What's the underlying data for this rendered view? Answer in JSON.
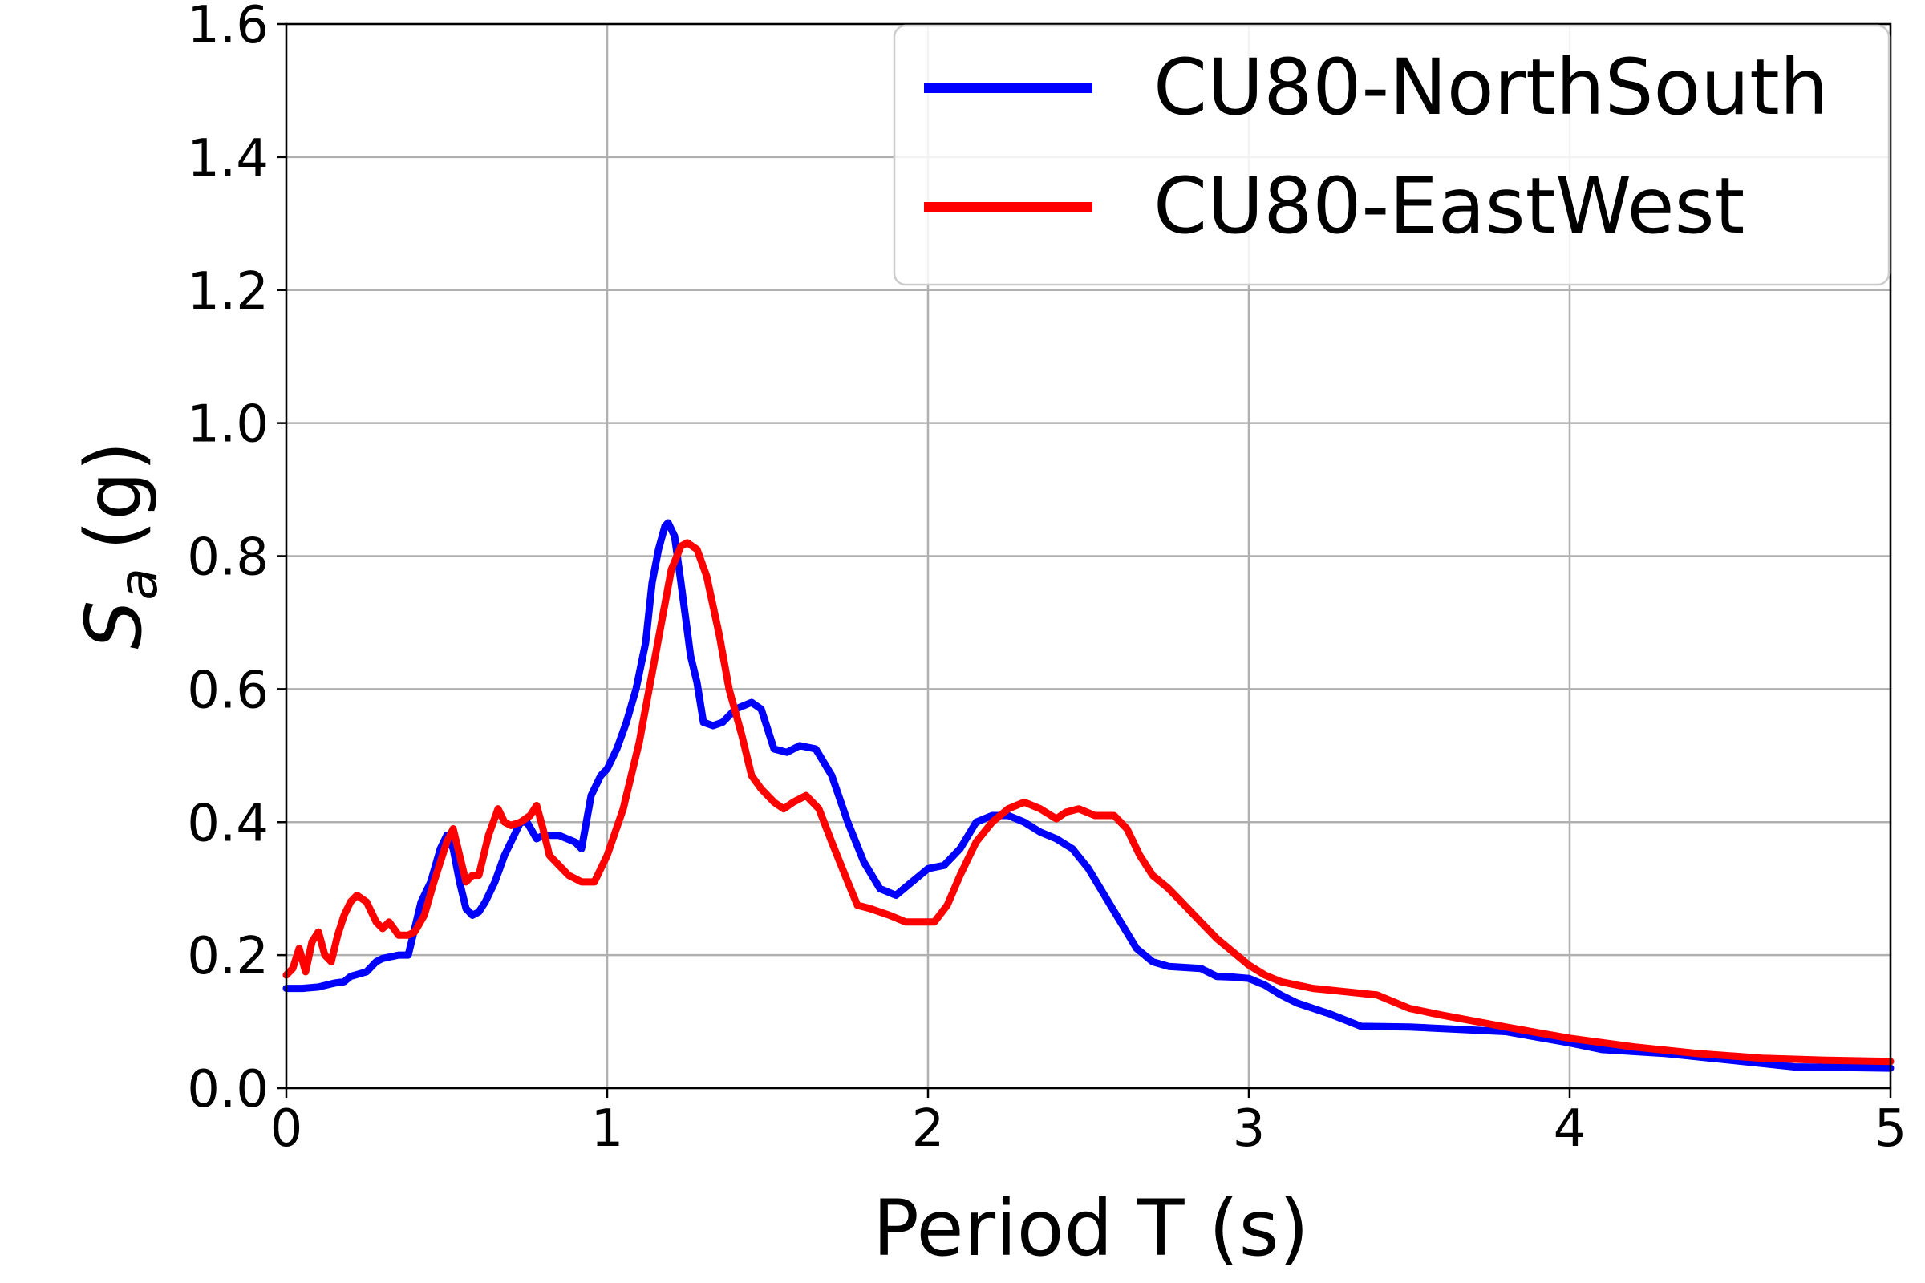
{
  "chart_data": {
    "type": "line",
    "xlabel": "Period T (s)",
    "ylabel_main": "S",
    "ylabel_sub": "a",
    "ylabel_unit": "(g)",
    "xlim": [
      0,
      5
    ],
    "ylim": [
      0,
      1.6
    ],
    "xticks": [
      "0",
      "1",
      "2",
      "3",
      "4",
      "5"
    ],
    "yticks": [
      "0.0",
      "0.2",
      "0.4",
      "0.6",
      "0.8",
      "1.0",
      "1.2",
      "1.4",
      "1.6"
    ],
    "grid": true,
    "legend_position": "top-right",
    "series": [
      {
        "name": "CU80-NorthSouth",
        "color": "#0000ff",
        "points": [
          [
            0.0,
            0.15
          ],
          [
            0.05,
            0.15
          ],
          [
            0.1,
            0.152
          ],
          [
            0.15,
            0.158
          ],
          [
            0.18,
            0.16
          ],
          [
            0.2,
            0.168
          ],
          [
            0.25,
            0.175
          ],
          [
            0.28,
            0.19
          ],
          [
            0.3,
            0.195
          ],
          [
            0.35,
            0.2
          ],
          [
            0.38,
            0.2
          ],
          [
            0.4,
            0.24
          ],
          [
            0.42,
            0.28
          ],
          [
            0.45,
            0.31
          ],
          [
            0.48,
            0.36
          ],
          [
            0.5,
            0.38
          ],
          [
            0.52,
            0.36
          ],
          [
            0.54,
            0.31
          ],
          [
            0.56,
            0.27
          ],
          [
            0.58,
            0.26
          ],
          [
            0.6,
            0.265
          ],
          [
            0.62,
            0.28
          ],
          [
            0.65,
            0.31
          ],
          [
            0.68,
            0.35
          ],
          [
            0.7,
            0.37
          ],
          [
            0.73,
            0.4
          ],
          [
            0.75,
            0.4
          ],
          [
            0.78,
            0.375
          ],
          [
            0.8,
            0.38
          ],
          [
            0.85,
            0.38
          ],
          [
            0.9,
            0.37
          ],
          [
            0.92,
            0.36
          ],
          [
            0.95,
            0.44
          ],
          [
            0.98,
            0.47
          ],
          [
            1.0,
            0.48
          ],
          [
            1.03,
            0.51
          ],
          [
            1.06,
            0.55
          ],
          [
            1.09,
            0.6
          ],
          [
            1.12,
            0.67
          ],
          [
            1.14,
            0.76
          ],
          [
            1.16,
            0.81
          ],
          [
            1.18,
            0.845
          ],
          [
            1.19,
            0.85
          ],
          [
            1.21,
            0.83
          ],
          [
            1.23,
            0.76
          ],
          [
            1.26,
            0.65
          ],
          [
            1.28,
            0.61
          ],
          [
            1.3,
            0.55
          ],
          [
            1.33,
            0.545
          ],
          [
            1.36,
            0.55
          ],
          [
            1.4,
            0.57
          ],
          [
            1.45,
            0.58
          ],
          [
            1.48,
            0.57
          ],
          [
            1.52,
            0.51
          ],
          [
            1.56,
            0.505
          ],
          [
            1.6,
            0.515
          ],
          [
            1.65,
            0.51
          ],
          [
            1.7,
            0.47
          ],
          [
            1.75,
            0.4
          ],
          [
            1.8,
            0.34
          ],
          [
            1.85,
            0.3
          ],
          [
            1.9,
            0.29
          ],
          [
            1.95,
            0.31
          ],
          [
            2.0,
            0.33
          ],
          [
            2.05,
            0.335
          ],
          [
            2.1,
            0.36
          ],
          [
            2.15,
            0.4
          ],
          [
            2.2,
            0.41
          ],
          [
            2.25,
            0.41
          ],
          [
            2.3,
            0.4
          ],
          [
            2.35,
            0.385
          ],
          [
            2.4,
            0.375
          ],
          [
            2.45,
            0.36
          ],
          [
            2.5,
            0.33
          ],
          [
            2.55,
            0.29
          ],
          [
            2.6,
            0.25
          ],
          [
            2.65,
            0.21
          ],
          [
            2.7,
            0.19
          ],
          [
            2.75,
            0.183
          ],
          [
            2.85,
            0.18
          ],
          [
            2.9,
            0.168
          ],
          [
            2.95,
            0.167
          ],
          [
            3.0,
            0.165
          ],
          [
            3.05,
            0.155
          ],
          [
            3.1,
            0.14
          ],
          [
            3.15,
            0.128
          ],
          [
            3.2,
            0.12
          ],
          [
            3.25,
            0.112
          ],
          [
            3.35,
            0.093
          ],
          [
            3.5,
            0.092
          ],
          [
            3.8,
            0.085
          ],
          [
            4.0,
            0.068
          ],
          [
            4.1,
            0.058
          ],
          [
            4.3,
            0.052
          ],
          [
            4.5,
            0.042
          ],
          [
            4.7,
            0.032
          ],
          [
            5.0,
            0.03
          ]
        ]
      },
      {
        "name": "CU80-EastWest",
        "color": "#ff0000",
        "points": [
          [
            0.0,
            0.17
          ],
          [
            0.02,
            0.18
          ],
          [
            0.04,
            0.21
          ],
          [
            0.06,
            0.175
          ],
          [
            0.08,
            0.22
          ],
          [
            0.1,
            0.235
          ],
          [
            0.12,
            0.2
          ],
          [
            0.14,
            0.19
          ],
          [
            0.16,
            0.23
          ],
          [
            0.18,
            0.26
          ],
          [
            0.2,
            0.28
          ],
          [
            0.22,
            0.29
          ],
          [
            0.25,
            0.28
          ],
          [
            0.28,
            0.25
          ],
          [
            0.3,
            0.24
          ],
          [
            0.32,
            0.25
          ],
          [
            0.35,
            0.23
          ],
          [
            0.38,
            0.23
          ],
          [
            0.4,
            0.235
          ],
          [
            0.43,
            0.26
          ],
          [
            0.46,
            0.31
          ],
          [
            0.5,
            0.37
          ],
          [
            0.52,
            0.39
          ],
          [
            0.54,
            0.35
          ],
          [
            0.56,
            0.31
          ],
          [
            0.58,
            0.32
          ],
          [
            0.6,
            0.32
          ],
          [
            0.63,
            0.38
          ],
          [
            0.66,
            0.42
          ],
          [
            0.68,
            0.4
          ],
          [
            0.7,
            0.395
          ],
          [
            0.73,
            0.4
          ],
          [
            0.76,
            0.41
          ],
          [
            0.78,
            0.425
          ],
          [
            0.8,
            0.39
          ],
          [
            0.82,
            0.35
          ],
          [
            0.85,
            0.335
          ],
          [
            0.88,
            0.32
          ],
          [
            0.92,
            0.31
          ],
          [
            0.96,
            0.31
          ],
          [
            1.0,
            0.35
          ],
          [
            1.05,
            0.42
          ],
          [
            1.1,
            0.52
          ],
          [
            1.15,
            0.65
          ],
          [
            1.2,
            0.78
          ],
          [
            1.23,
            0.815
          ],
          [
            1.25,
            0.82
          ],
          [
            1.28,
            0.81
          ],
          [
            1.31,
            0.77
          ],
          [
            1.35,
            0.68
          ],
          [
            1.38,
            0.6
          ],
          [
            1.42,
            0.53
          ],
          [
            1.45,
            0.47
          ],
          [
            1.48,
            0.45
          ],
          [
            1.52,
            0.43
          ],
          [
            1.55,
            0.42
          ],
          [
            1.58,
            0.43
          ],
          [
            1.62,
            0.44
          ],
          [
            1.66,
            0.42
          ],
          [
            1.7,
            0.37
          ],
          [
            1.75,
            0.31
          ],
          [
            1.78,
            0.275
          ],
          [
            1.82,
            0.27
          ],
          [
            1.88,
            0.26
          ],
          [
            1.93,
            0.25
          ],
          [
            1.98,
            0.25
          ],
          [
            2.02,
            0.25
          ],
          [
            2.06,
            0.275
          ],
          [
            2.1,
            0.32
          ],
          [
            2.15,
            0.37
          ],
          [
            2.2,
            0.4
          ],
          [
            2.25,
            0.42
          ],
          [
            2.3,
            0.43
          ],
          [
            2.35,
            0.42
          ],
          [
            2.4,
            0.405
          ],
          [
            2.43,
            0.415
          ],
          [
            2.47,
            0.42
          ],
          [
            2.52,
            0.41
          ],
          [
            2.58,
            0.41
          ],
          [
            2.62,
            0.39
          ],
          [
            2.66,
            0.35
          ],
          [
            2.7,
            0.32
          ],
          [
            2.75,
            0.3
          ],
          [
            2.8,
            0.275
          ],
          [
            2.85,
            0.25
          ],
          [
            2.9,
            0.225
          ],
          [
            2.95,
            0.205
          ],
          [
            3.0,
            0.185
          ],
          [
            3.05,
            0.17
          ],
          [
            3.1,
            0.16
          ],
          [
            3.2,
            0.15
          ],
          [
            3.3,
            0.145
          ],
          [
            3.4,
            0.14
          ],
          [
            3.5,
            0.12
          ],
          [
            3.6,
            0.11
          ],
          [
            3.8,
            0.092
          ],
          [
            4.0,
            0.075
          ],
          [
            4.2,
            0.062
          ],
          [
            4.4,
            0.052
          ],
          [
            4.6,
            0.045
          ],
          [
            4.8,
            0.042
          ],
          [
            5.0,
            0.04
          ]
        ]
      }
    ]
  }
}
